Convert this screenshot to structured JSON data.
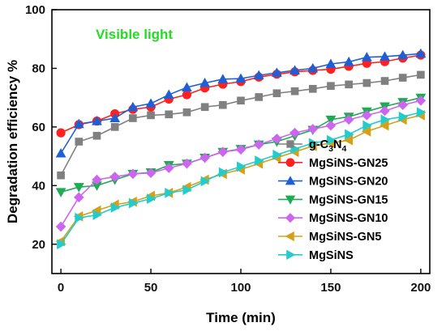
{
  "chart_data": {
    "type": "line",
    "xlabel": "Time (min)",
    "ylabel": "Degradation efficiency %",
    "xlim": [
      -5,
      205
    ],
    "ylim": [
      10,
      100
    ],
    "xticks": [
      0,
      50,
      100,
      150,
      200
    ],
    "yticks": [
      20,
      40,
      60,
      80,
      100
    ],
    "grid": false,
    "legend_position": "bottom-right",
    "annotation": {
      "text": "Visible light",
      "color": "#22dd22"
    },
    "x": [
      0,
      10,
      20,
      30,
      40,
      50,
      60,
      70,
      80,
      90,
      100,
      110,
      120,
      130,
      140,
      150,
      160,
      170,
      180,
      190,
      200
    ],
    "series": [
      {
        "name": "g-C3N4",
        "name_parts": [
          "g-C",
          "3",
          "N",
          "4"
        ],
        "color": "#808080",
        "marker": "square",
        "values": [
          43.5,
          55,
          57,
          60,
          63,
          64,
          64.3,
          65,
          66.8,
          67.5,
          69,
          70.2,
          71.5,
          72.2,
          73,
          74,
          74.5,
          75,
          75.7,
          76.8,
          77.8
        ]
      },
      {
        "name": "MgSiNS-GN25",
        "color": "#ff2020",
        "marker": "circle",
        "values": [
          58,
          60.8,
          62,
          64.5,
          66,
          66.8,
          69.5,
          71,
          73.3,
          74.6,
          75.5,
          77,
          78,
          78.8,
          79.3,
          79.7,
          80.7,
          81.7,
          82.3,
          83.5,
          84.5
        ]
      },
      {
        "name": "MgSiNS-GN20",
        "color": "#1f5fd6",
        "marker": "triangle-up",
        "values": [
          51,
          61,
          62,
          63,
          66.8,
          68,
          71,
          73.5,
          75,
          76.3,
          76.5,
          77.6,
          78.5,
          79.3,
          80,
          81.5,
          82.2,
          83.8,
          84,
          84.5,
          85
        ]
      },
      {
        "name": "MgSiNS-GN15",
        "color": "#1faa55",
        "marker": "triangle-down",
        "values": [
          37.8,
          39.5,
          40,
          42,
          44,
          44.5,
          47,
          47.5,
          49.5,
          51.5,
          52.5,
          54,
          55,
          57,
          59,
          62.5,
          63.5,
          65.3,
          67,
          68.5,
          70
        ]
      },
      {
        "name": "MgSiNS-GN10",
        "color": "#cc66ee",
        "marker": "diamond",
        "values": [
          26,
          36,
          42,
          43,
          44,
          44.3,
          46,
          47.5,
          49.5,
          51.5,
          52.3,
          54,
          56,
          58,
          59.3,
          60.5,
          62.5,
          64,
          65.5,
          67.5,
          69
        ]
      },
      {
        "name": "MgSiNS-GN5",
        "color": "#d4a017",
        "marker": "triangle-left",
        "values": [
          21,
          29.5,
          31.5,
          33.5,
          34.5,
          36.5,
          37.5,
          39.5,
          42,
          44,
          45.5,
          47.5,
          49.5,
          51.5,
          53.5,
          54.5,
          55.5,
          58.5,
          60.5,
          62.5,
          64
        ]
      },
      {
        "name": "MgSiNS",
        "color": "#22cccc",
        "marker": "triangle-right",
        "values": [
          20,
          29,
          30,
          32.5,
          34,
          35.5,
          37.5,
          38.5,
          41.5,
          44.5,
          46.5,
          48.5,
          50.5,
          52.5,
          54.5,
          55.5,
          57.5,
          60.5,
          62.5,
          63.5,
          65
        ]
      }
    ]
  }
}
